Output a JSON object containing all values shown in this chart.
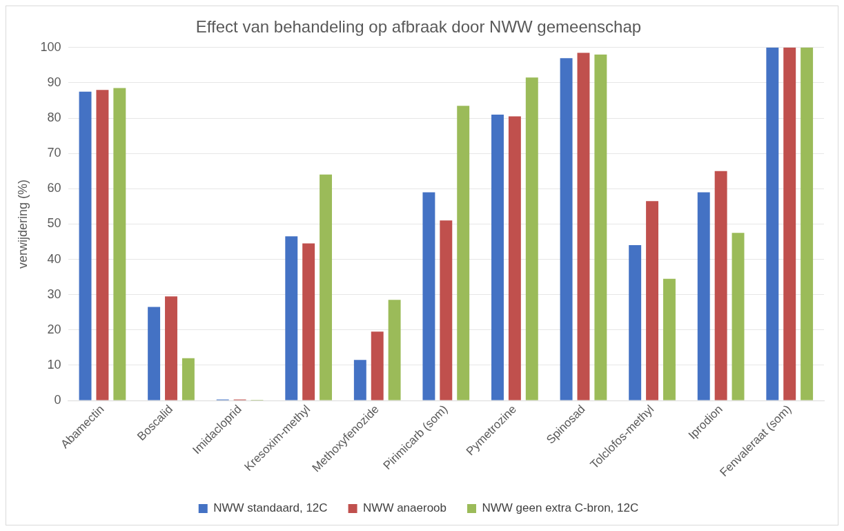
{
  "chart_data": {
    "type": "bar",
    "title": "Effect van behandeling op afbraak door NWW gemeenschap",
    "ylabel": "verwijdering (%)",
    "categories": [
      "Abamectin",
      "Boscalid",
      "Imidacloprid",
      "Kresoxim-methyl",
      "Methoxyfenozide",
      "Pirimicarb (som)",
      "Pymetrozine",
      "Spinosad",
      "Tolclofos-methyl",
      "Iprodion",
      "Fenvaleraat (som)"
    ],
    "series": [
      {
        "name": "NWW standaard, 12C",
        "color": "#4472c4",
        "values": [
          87.5,
          26.5,
          0.3,
          46.5,
          11.5,
          59,
          81,
          97,
          44,
          59,
          100
        ]
      },
      {
        "name": "NWW anaeroob",
        "color": "#c0504d",
        "values": [
          88,
          29.5,
          0.3,
          44.5,
          19.5,
          51,
          80.5,
          98.5,
          56.5,
          65,
          100
        ]
      },
      {
        "name": "NWW geen extra C-bron, 12C",
        "color": "#9bbb59",
        "values": [
          88.5,
          12,
          0.2,
          64,
          28.5,
          83.5,
          91.5,
          98,
          34.5,
          47.5,
          100
        ]
      }
    ],
    "ylim": [
      0,
      100
    ],
    "yticks": [
      0,
      10,
      20,
      30,
      40,
      50,
      60,
      70,
      80,
      90,
      100
    ],
    "grid": "y",
    "legend": "bottom"
  }
}
